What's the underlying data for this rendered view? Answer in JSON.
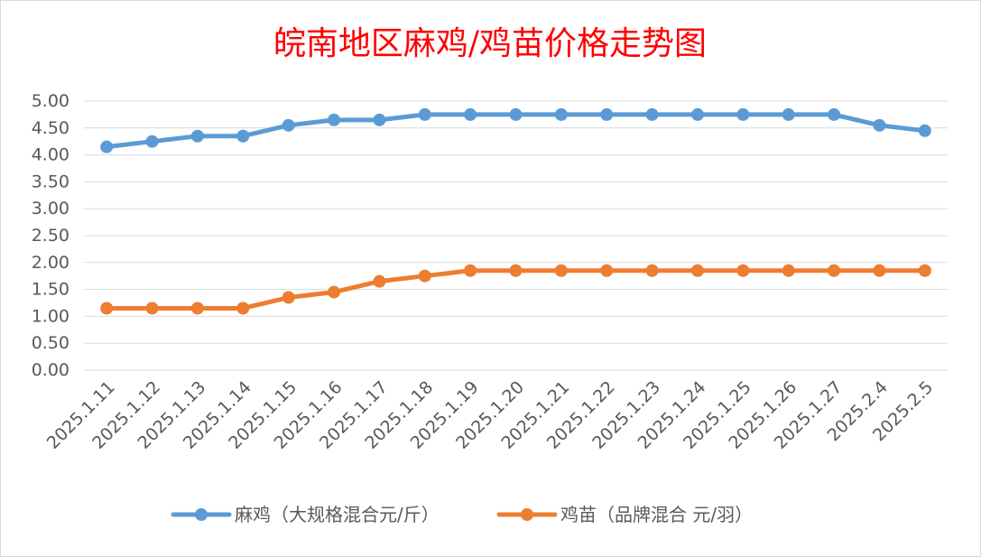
{
  "chart_data": {
    "type": "line",
    "title": "皖南地区麻鸡/鸡苗价格走势图",
    "xlabel": "",
    "ylabel": "",
    "ylim": [
      0,
      5
    ],
    "y_ticks": [
      "0.00",
      "0.50",
      "1.00",
      "1.50",
      "2.00",
      "2.50",
      "3.00",
      "3.50",
      "4.00",
      "4.50",
      "5.00"
    ],
    "categories": [
      "2025.1.11",
      "2025.1.12",
      "2025.1.13",
      "2025.1.14",
      "2025.1.15",
      "2025.1.16",
      "2025.1.17",
      "2025.1.18",
      "2025.1.19",
      "2025.1.20",
      "2025.1.21",
      "2025.1.22",
      "2025.1.23",
      "2025.1.24",
      "2025.1.25",
      "2025.1.26",
      "2025.1.27",
      "2025.2.4",
      "2025.2.5"
    ],
    "grid": true,
    "legend_position": "bottom",
    "series": [
      {
        "name": "麻鸡（大规格混合元/斤）",
        "color": "#5B9BD5",
        "values": [
          4.15,
          4.25,
          4.35,
          4.35,
          4.55,
          4.65,
          4.65,
          4.75,
          4.75,
          4.75,
          4.75,
          4.75,
          4.75,
          4.75,
          4.75,
          4.75,
          4.75,
          4.55,
          4.45
        ]
      },
      {
        "name": "鸡苗（品牌混合 元/羽）",
        "color": "#ED7D31",
        "values": [
          1.15,
          1.15,
          1.15,
          1.15,
          1.35,
          1.45,
          1.65,
          1.75,
          1.85,
          1.85,
          1.85,
          1.85,
          1.85,
          1.85,
          1.85,
          1.85,
          1.85,
          1.85,
          1.85
        ]
      }
    ],
    "title_color": "#FF0000",
    "text_color": "#595959",
    "grid_color": "#D9D9D9"
  }
}
